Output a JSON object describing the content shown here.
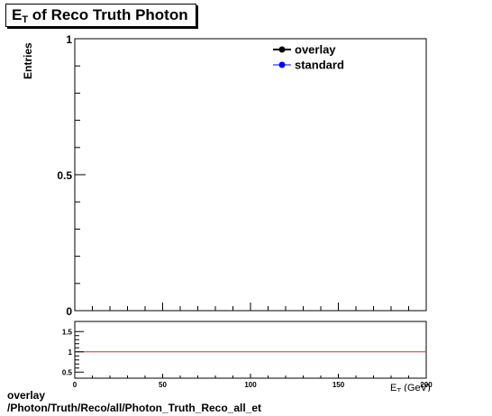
{
  "chart_data": [
    {
      "type": "line",
      "title_prefix": "E",
      "title_sub": "T",
      "title_suffix": " of Reco Truth Photon",
      "ylabel": "Entries",
      "xlim": [
        0,
        200
      ],
      "ylim": [
        0,
        1
      ],
      "y_ticks": [
        "0",
        "0.5",
        "1"
      ],
      "grid": false,
      "legend_position": "top-right",
      "series": [
        {
          "name": "overlay",
          "color": "#000000",
          "marker": "circle",
          "values": []
        },
        {
          "name": "standard",
          "color": "#0000ff",
          "marker": "circle",
          "values": []
        }
      ]
    },
    {
      "type": "line",
      "xlim": [
        0,
        200
      ],
      "ylim": [
        0.35,
        1.75
      ],
      "x_ticks": [
        "0",
        "50",
        "100",
        "150",
        "200"
      ],
      "y_ticks": [
        "0.5",
        "1",
        "1.5"
      ],
      "xlabel_prefix": "E",
      "xlabel_sub": "T",
      "xlabel_suffix": " (GeV)",
      "reference_line": {
        "y": 1,
        "color": "#cc3333"
      }
    }
  ],
  "footer": {
    "line1": "overlay",
    "line2": "/Photon/Truth/Reco/all/Photon_Truth_Reco_all_et"
  }
}
